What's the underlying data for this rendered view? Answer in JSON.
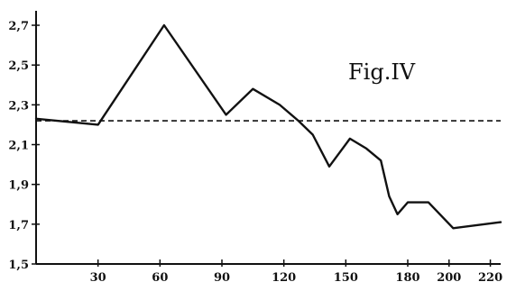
{
  "chart_data": {
    "type": "line",
    "annotation": "Fig.IV",
    "title": "",
    "xlabel": "",
    "ylabel": "",
    "xlim": [
      0,
      225
    ],
    "ylim": [
      1.5,
      2.75
    ],
    "x_ticks": [
      {
        "value": 30,
        "label": "30"
      },
      {
        "value": 60,
        "label": "60"
      },
      {
        "value": 90,
        "label": "90"
      },
      {
        "value": 120,
        "label": "120"
      },
      {
        "value": 150,
        "label": "150"
      },
      {
        "value": 180,
        "label": "180"
      },
      {
        "value": 200,
        "label": "200"
      },
      {
        "value": 220,
        "label": "220"
      }
    ],
    "y_ticks": [
      {
        "value": 1.5,
        "label": "1,5"
      },
      {
        "value": 1.7,
        "label": "1,7"
      },
      {
        "value": 1.9,
        "label": "1,9"
      },
      {
        "value": 2.1,
        "label": "2,1"
      },
      {
        "value": 2.3,
        "label": "2,3"
      },
      {
        "value": 2.5,
        "label": "2,5"
      },
      {
        "value": 2.7,
        "label": "2,7"
      }
    ],
    "grid": false,
    "series": [
      {
        "x": [
          0,
          30,
          62,
          92,
          105,
          118,
          127,
          134,
          142,
          152,
          160,
          167,
          171,
          175,
          180,
          190,
          202,
          225
        ],
        "values": [
          2.23,
          2.2,
          2.7,
          2.25,
          2.38,
          2.3,
          2.22,
          2.15,
          1.99,
          2.13,
          2.08,
          2.02,
          1.84,
          1.75,
          1.81,
          1.81,
          1.68,
          1.71
        ]
      }
    ],
    "reference_line": {
      "y": 2.22,
      "style": "dashed"
    }
  }
}
